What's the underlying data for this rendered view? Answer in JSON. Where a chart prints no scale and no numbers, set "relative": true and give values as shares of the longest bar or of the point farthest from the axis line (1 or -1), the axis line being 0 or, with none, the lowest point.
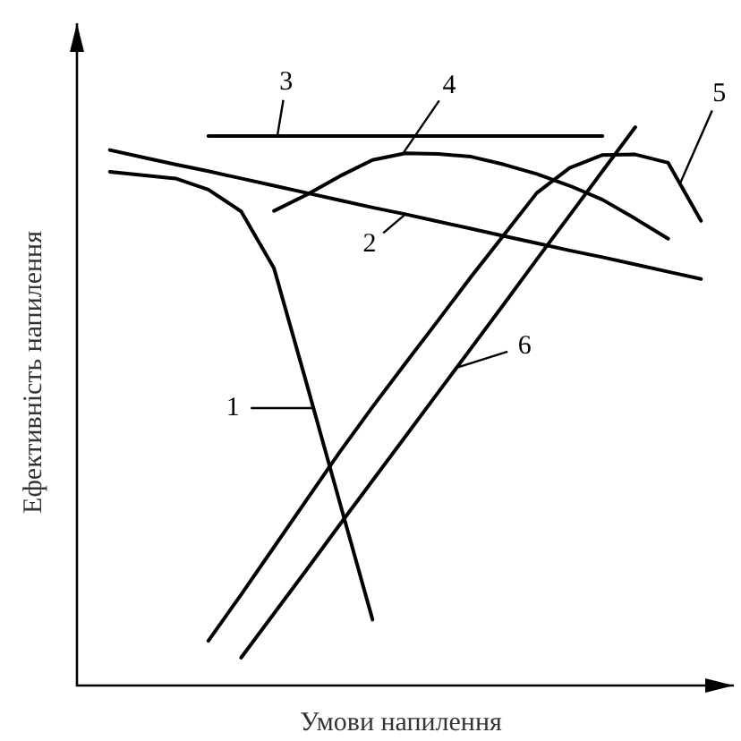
{
  "chart_data": {
    "type": "line",
    "relative": true,
    "xlabel": "Умови напилення",
    "ylabel": "Ефективність напилення",
    "categories": [
      null,
      null,
      null,
      null,
      null,
      null,
      null,
      null,
      null,
      null,
      null,
      null,
      null,
      null,
      null,
      null,
      null,
      null,
      null,
      null,
      null
    ],
    "series": [
      {
        "name": "1",
        "color": "#000000",
        "values": [
          null,
          0.92,
          0.914,
          0.908,
          0.888,
          0.849,
          0.747,
          0.539,
          0.328,
          0.118,
          null,
          null,
          null,
          null,
          null,
          null,
          null,
          null,
          null,
          null,
          null
        ]
      },
      {
        "name": "2",
        "color": "#000000",
        "values": [
          null,
          0.959,
          0.946,
          0.933,
          0.921,
          0.908,
          0.895,
          0.882,
          0.869,
          0.856,
          0.844,
          0.831,
          0.818,
          0.805,
          0.792,
          0.779,
          0.767,
          0.754,
          0.741,
          0.728,
          null
        ]
      },
      {
        "name": "3",
        "color": "#000000",
        "values": [
          null,
          null,
          null,
          null,
          0.984,
          0.984,
          0.984,
          0.984,
          0.984,
          0.984,
          0.984,
          0.984,
          0.984,
          0.984,
          0.984,
          0.984,
          0.984,
          null,
          null,
          null,
          null
        ]
      },
      {
        "name": "4",
        "color": "#000000",
        "values": [
          null,
          null,
          null,
          null,
          null,
          null,
          0.85,
          0.879,
          0.912,
          0.941,
          0.953,
          0.952,
          0.947,
          0.933,
          0.916,
          0.895,
          0.87,
          0.836,
          0.8,
          null,
          null
        ]
      },
      {
        "name": "5",
        "color": "#000000",
        "values": [
          null,
          null,
          null,
          null,
          0.08,
          0.163,
          0.248,
          0.333,
          0.418,
          0.499,
          0.577,
          0.654,
          0.732,
          0.807,
          0.882,
          0.927,
          0.95,
          0.951,
          0.936,
          0.832,
          null
        ]
      },
      {
        "name": "6",
        "color": "#000000",
        "values": [
          null,
          null,
          null,
          null,
          null,
          0.05,
          0.129,
          0.208,
          0.288,
          0.367,
          0.446,
          0.525,
          0.604,
          0.683,
          0.763,
          0.842,
          0.921,
          1,
          null,
          null,
          null
        ]
      }
    ]
  }
}
